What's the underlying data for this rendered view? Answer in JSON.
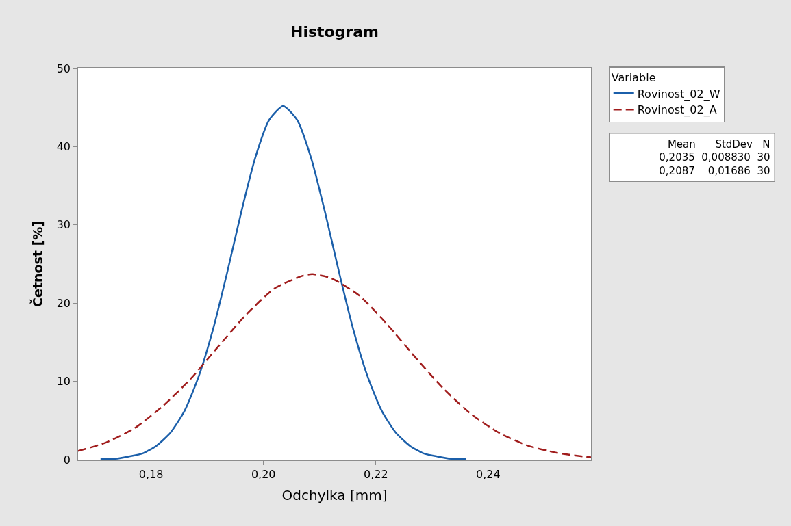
{
  "chart_data": {
    "type": "line",
    "title": "Histogram",
    "xlabel": "Odchylka [mm]",
    "ylabel": "Četnost [%]",
    "legend_title": "Variable",
    "xlim": [
      0.167,
      0.2583
    ],
    "xticks": [
      {
        "value": 0.18,
        "label": "0,18"
      },
      {
        "value": 0.2,
        "label": "0,20"
      },
      {
        "value": 0.22,
        "label": "0,22"
      },
      {
        "value": 0.24,
        "label": "0,24"
      }
    ],
    "ylim": [
      0,
      50
    ],
    "yticks": [
      0,
      10,
      20,
      30,
      40,
      50
    ],
    "legend": "top right",
    "series": [
      {
        "name": "Rovinost_02_W",
        "color": "#1b5faa",
        "line_style": "solid",
        "x": [
          0.171,
          0.1735,
          0.176,
          0.1785,
          0.181,
          0.1835,
          0.186,
          0.1885,
          0.191,
          0.1935,
          0.196,
          0.1985,
          0.201,
          0.2035,
          0.206,
          0.2085,
          0.211,
          0.2135,
          0.216,
          0.2185,
          0.221,
          0.2235,
          0.226,
          0.2285,
          0.231,
          0.2335,
          0.236
        ],
        "values": [
          0.1,
          0.1,
          0.4,
          0.8,
          1.8,
          3.5,
          6.3,
          10.7,
          16.6,
          23.8,
          31.5,
          38.5,
          43.4,
          45.2,
          43.4,
          38.5,
          31.5,
          23.8,
          16.6,
          10.7,
          6.3,
          3.5,
          1.8,
          0.8,
          0.4,
          0.1,
          0.1
        ]
      },
      {
        "name": "Rovinost_02_A",
        "color": "#a01c1c",
        "line_style": "dashed",
        "x": [
          0.167,
          0.172,
          0.177,
          0.182,
          0.187,
          0.192,
          0.197,
          0.202,
          0.207,
          0.2087,
          0.212,
          0.217,
          0.222,
          0.227,
          0.232,
          0.237,
          0.242,
          0.247,
          0.252,
          0.257,
          0.2583
        ],
        "values": [
          1.1,
          2.2,
          4.0,
          6.8,
          10.3,
          14.5,
          18.6,
          21.9,
          23.5,
          23.7,
          23.2,
          21.0,
          17.3,
          13.1,
          9.1,
          5.8,
          3.4,
          1.8,
          0.9,
          0.4,
          0.3
        ]
      }
    ],
    "annotations": [
      "Mean      StdDev   N\n0,2035  0,008830  30\n0,2087    0,01686  30"
    ]
  }
}
